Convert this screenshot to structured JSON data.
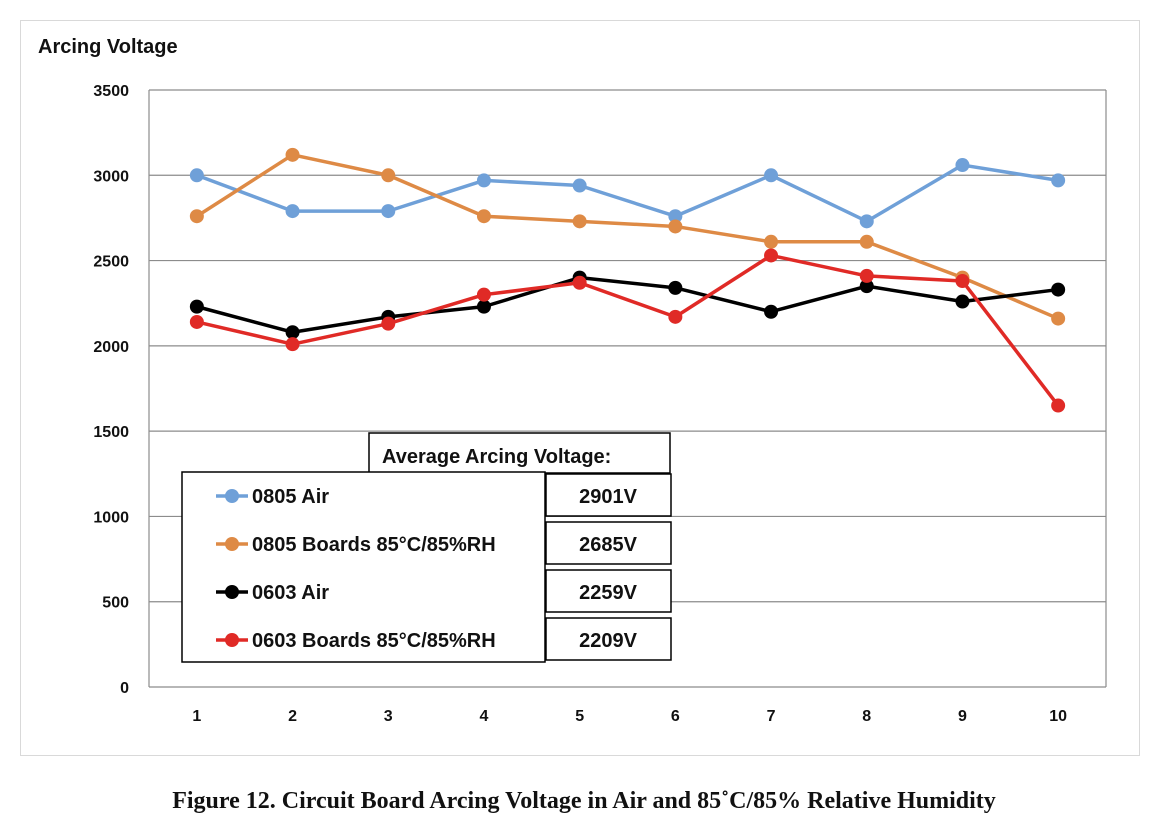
{
  "caption": "Figure 12. Circuit Board Arcing Voltage in Air and 85˚C/85% Relative Humidity",
  "chart_data": {
    "type": "line",
    "title": "",
    "ylabel": "Arcing Voltage",
    "xlabel": "",
    "x": [
      1,
      2,
      3,
      4,
      5,
      6,
      7,
      8,
      9,
      10
    ],
    "ylim": [
      0,
      3500
    ],
    "yticks": [
      0,
      500,
      1000,
      1500,
      2000,
      2500,
      3000,
      3500
    ],
    "grid": "horizontal",
    "legend_placement": "bottom-left",
    "series": [
      {
        "name": "0805 Air",
        "color": "#6fa0d8",
        "values": [
          3000,
          2790,
          2790,
          2970,
          2940,
          2760,
          3000,
          2730,
          3060,
          2970
        ],
        "average": "2901V"
      },
      {
        "name": "0805 Boards 85°C/85%RH",
        "color": "#de8a45",
        "values": [
          2760,
          3120,
          3000,
          2760,
          2730,
          2700,
          2610,
          2610,
          2400,
          2160
        ],
        "average": "2685V"
      },
      {
        "name": "0603 Air",
        "color": "#000000",
        "values": [
          2230,
          2080,
          2170,
          2230,
          2400,
          2340,
          2200,
          2350,
          2260,
          2330
        ],
        "average": "2259V"
      },
      {
        "name": "0603 Boards 85°C/85%RH",
        "color": "#e02a26",
        "values": [
          2140,
          2010,
          2130,
          2300,
          2370,
          2170,
          2530,
          2410,
          2380,
          1650
        ],
        "average": "2209V"
      }
    ],
    "average_table": {
      "header": "Average Arcing Voltage:"
    }
  }
}
